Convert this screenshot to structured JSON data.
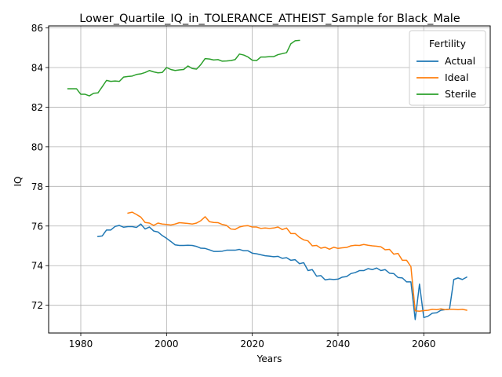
{
  "chart_data": {
    "type": "line",
    "title": "Lower_Quartile_IQ_in_TOLERANCE_ATHEIST_Sample for Black_Male",
    "xlabel": "Years",
    "ylabel": "IQ",
    "xlim": [
      1972.5,
      2075.5
    ],
    "ylim": [
      70.6,
      86.1
    ],
    "x_ticks": [
      1980,
      2000,
      2020,
      2040,
      2060
    ],
    "y_ticks": [
      72,
      74,
      76,
      78,
      80,
      82,
      84,
      86
    ],
    "grid": true,
    "legend": {
      "title": "Fertility",
      "placement": "top-right"
    },
    "series": [
      {
        "name": "Actual",
        "color": "#1f77b4",
        "x": [
          1984,
          1985,
          1986,
          1987,
          1988,
          1989,
          1990,
          1991,
          1992,
          1993,
          1994,
          1995,
          1996,
          1997,
          1998,
          1999,
          2000,
          2001,
          2002,
          2003,
          2004,
          2005,
          2006,
          2007,
          2008,
          2009,
          2010,
          2011,
          2012,
          2013,
          2014,
          2015,
          2016,
          2017,
          2018,
          2019,
          2020,
          2021,
          2022,
          2023,
          2024,
          2025,
          2026,
          2027,
          2028,
          2029,
          2030,
          2031,
          2032,
          2033,
          2034,
          2035,
          2036,
          2037,
          2038,
          2039,
          2040,
          2041,
          2042,
          2043,
          2044,
          2045,
          2046,
          2047,
          2048,
          2049,
          2050,
          2051,
          2052,
          2053,
          2054,
          2055,
          2056,
          2057,
          2058,
          2059,
          2060,
          2061,
          2062,
          2063,
          2064,
          2065,
          2066,
          2067,
          2068,
          2069,
          2070
        ],
        "values": [
          75.47,
          75.5,
          75.8,
          75.8,
          75.98,
          76.03,
          75.94,
          75.97,
          75.97,
          75.93,
          76.1,
          75.85,
          75.95,
          75.75,
          75.7,
          75.52,
          75.38,
          75.22,
          75.05,
          75.02,
          75.02,
          75.03,
          75.02,
          74.97,
          74.88,
          74.87,
          74.8,
          74.72,
          74.72,
          74.73,
          74.78,
          74.78,
          74.78,
          74.82,
          74.75,
          74.75,
          74.63,
          74.6,
          74.55,
          74.5,
          74.48,
          74.45,
          74.47,
          74.37,
          74.4,
          74.27,
          74.3,
          74.1,
          74.15,
          73.75,
          73.8,
          73.47,
          73.5,
          73.28,
          73.32,
          73.3,
          73.32,
          73.42,
          73.45,
          73.6,
          73.65,
          73.75,
          73.75,
          73.85,
          73.8,
          73.88,
          73.75,
          73.8,
          73.62,
          73.6,
          73.4,
          73.38,
          73.18,
          73.18,
          71.28,
          73.07,
          71.38,
          71.45,
          71.6,
          71.62,
          71.75,
          71.78,
          71.8,
          73.3,
          73.38,
          73.3,
          73.42
        ]
      },
      {
        "name": "Ideal",
        "color": "#ff7f0e",
        "x": [
          1991,
          1992,
          1993,
          1994,
          1995,
          1996,
          1997,
          1998,
          1999,
          2000,
          2001,
          2002,
          2003,
          2004,
          2005,
          2006,
          2007,
          2008,
          2009,
          2010,
          2011,
          2012,
          2013,
          2014,
          2015,
          2016,
          2017,
          2018,
          2019,
          2020,
          2021,
          2022,
          2023,
          2024,
          2025,
          2026,
          2027,
          2028,
          2029,
          2030,
          2031,
          2032,
          2033,
          2034,
          2035,
          2036,
          2037,
          2038,
          2039,
          2040,
          2041,
          2042,
          2043,
          2044,
          2045,
          2046,
          2047,
          2048,
          2049,
          2050,
          2051,
          2052,
          2053,
          2054,
          2055,
          2056,
          2057,
          2058,
          2059,
          2060,
          2061,
          2062,
          2063,
          2064,
          2065,
          2066,
          2067,
          2068,
          2069,
          2070
        ],
        "values": [
          76.65,
          76.7,
          76.58,
          76.45,
          76.18,
          76.15,
          76.03,
          76.15,
          76.1,
          76.08,
          76.05,
          76.1,
          76.17,
          76.15,
          76.13,
          76.1,
          76.15,
          76.27,
          76.47,
          76.22,
          76.18,
          76.17,
          76.08,
          76.03,
          75.85,
          75.83,
          75.95,
          76.0,
          76.02,
          75.95,
          75.95,
          75.88,
          75.9,
          75.88,
          75.9,
          75.95,
          75.82,
          75.9,
          75.62,
          75.62,
          75.43,
          75.3,
          75.25,
          75.0,
          75.02,
          74.88,
          74.93,
          74.83,
          74.93,
          74.87,
          74.9,
          74.92,
          75.0,
          75.03,
          75.02,
          75.07,
          75.03,
          75.0,
          74.98,
          74.95,
          74.8,
          74.82,
          74.58,
          74.62,
          74.27,
          74.27,
          73.95,
          71.72,
          71.7,
          71.73,
          71.75,
          71.8,
          71.78,
          71.82,
          71.78,
          71.8,
          71.8,
          71.78,
          71.8,
          71.75
        ]
      },
      {
        "name": "Sterile",
        "color": "#2ca02c",
        "x": [
          1977,
          1978,
          1979,
          1980,
          1981,
          1982,
          1983,
          1984,
          1985,
          1986,
          1987,
          1988,
          1989,
          1990,
          1991,
          1992,
          1993,
          1994,
          1995,
          1996,
          1997,
          1998,
          1999,
          2000,
          2001,
          2002,
          2003,
          2004,
          2005,
          2006,
          2007,
          2008,
          2009,
          2010,
          2011,
          2012,
          2013,
          2014,
          2015,
          2016,
          2017,
          2018,
          2019,
          2020,
          2021,
          2022,
          2023,
          2024,
          2025,
          2026,
          2027,
          2028,
          2029,
          2030,
          2031
        ],
        "values": [
          82.93,
          82.93,
          82.93,
          82.65,
          82.65,
          82.57,
          82.7,
          82.72,
          83.03,
          83.35,
          83.3,
          83.32,
          83.3,
          83.52,
          83.55,
          83.57,
          83.65,
          83.68,
          83.75,
          83.85,
          83.78,
          83.73,
          83.75,
          84.0,
          83.9,
          83.85,
          83.88,
          83.9,
          84.08,
          83.95,
          83.92,
          84.15,
          84.45,
          84.43,
          84.38,
          84.4,
          84.32,
          84.33,
          84.35,
          84.4,
          84.68,
          84.63,
          84.53,
          84.37,
          84.35,
          84.53,
          84.53,
          84.55,
          84.55,
          84.65,
          84.7,
          84.75,
          85.2,
          85.35,
          85.37
        ]
      }
    ]
  }
}
